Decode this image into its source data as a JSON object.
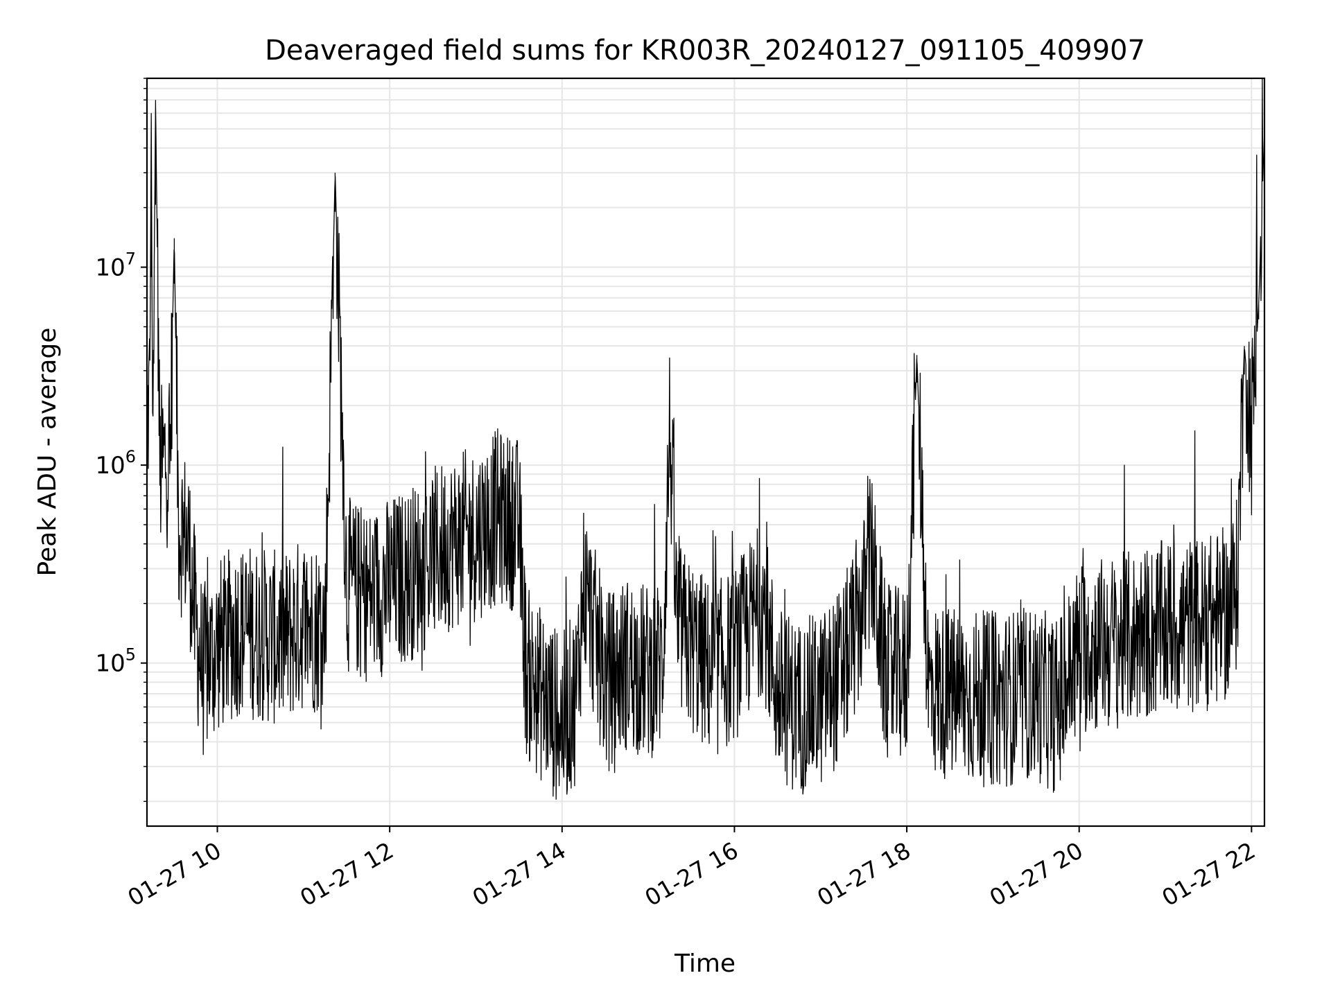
{
  "chart_data": {
    "type": "line",
    "title": "Deaveraged field sums for KR003R_20240127_091105_409907",
    "xlabel": "Time",
    "ylabel": "Peak ADU - average",
    "yscale": "log",
    "grid": true,
    "xlim": [
      "01-27 09:11",
      "01-27 22:09"
    ],
    "ylim": [
      15000,
      90000000
    ],
    "x_ticks": [
      {
        "label": "01-27 10",
        "hour": 10
      },
      {
        "label": "01-27 12",
        "hour": 12
      },
      {
        "label": "01-27 14",
        "hour": 14
      },
      {
        "label": "01-27 16",
        "hour": 16
      },
      {
        "label": "01-27 18",
        "hour": 18
      },
      {
        "label": "01-27 20",
        "hour": 20
      },
      {
        "label": "01-27 22",
        "hour": 22
      }
    ],
    "y_ticks": [
      {
        "base": "10",
        "exp": "5",
        "value": 100000
      },
      {
        "base": "10",
        "exp": "6",
        "value": 1000000
      },
      {
        "base": "10",
        "exp": "7",
        "value": 10000000
      }
    ],
    "series": [
      {
        "color": "#000000",
        "x": [
          "01-27 09:11",
          "01-27 09:13",
          "01-27 09:14",
          "01-27 09:15",
          "01-27 09:17",
          "01-27 09:20",
          "01-27 09:24",
          "01-27 09:27",
          "01-27 09:30",
          "01-27 09:33",
          "01-27 09:40",
          "01-27 09:45",
          "01-27 09:50",
          "01-27 10:00",
          "01-27 10:15",
          "01-27 10:30",
          "01-27 10:45",
          "01-27 11:00",
          "01-27 11:15",
          "01-27 11:22",
          "01-27 11:30",
          "01-27 11:45",
          "01-27 12:00",
          "01-27 12:20",
          "01-27 12:40",
          "01-27 13:00",
          "01-27 13:15",
          "01-27 13:30",
          "01-27 13:35",
          "01-27 13:45",
          "01-27 14:00",
          "01-27 14:10",
          "01-27 14:15",
          "01-27 14:30",
          "01-27 14:45",
          "01-27 15:00",
          "01-27 15:10",
          "01-27 15:15",
          "01-27 15:20",
          "01-27 15:30",
          "01-27 15:45",
          "01-27 16:00",
          "01-27 16:20",
          "01-27 16:30",
          "01-27 16:45",
          "01-27 17:00",
          "01-27 17:15",
          "01-27 17:30",
          "01-27 17:35",
          "01-27 17:45",
          "01-27 18:00",
          "01-27 18:07",
          "01-27 18:15",
          "01-27 18:30",
          "01-27 19:00",
          "01-27 19:30",
          "01-27 19:45",
          "01-27 20:00",
          "01-27 20:30",
          "01-27 21:00",
          "01-27 21:30",
          "01-27 21:45",
          "01-27 21:50",
          "01-27 21:55",
          "01-27 22:00",
          "01-27 22:05",
          "01-27 22:09"
        ],
        "y": [
          1500000,
          2500000,
          60000000,
          1200000,
          70000000,
          900000,
          1100000,
          1000000,
          14000000,
          500000,
          400000,
          150000,
          90000,
          120000,
          150000,
          140000,
          130000,
          160000,
          150000,
          30000000,
          250000,
          220000,
          250000,
          300000,
          400000,
          450000,
          550000,
          500000,
          90000,
          70000,
          50000,
          70000,
          250000,
          80000,
          100000,
          90000,
          100000,
          1600000,
          150000,
          120000,
          90000,
          110000,
          200000,
          70000,
          60000,
          65000,
          90000,
          200000,
          350000,
          90000,
          85000,
          3600000,
          75000,
          70000,
          65000,
          70000,
          60000,
          120000,
          130000,
          150000,
          160000,
          180000,
          250000,
          4000000,
          1500000,
          6500000,
          50000000
        ]
      }
    ]
  }
}
